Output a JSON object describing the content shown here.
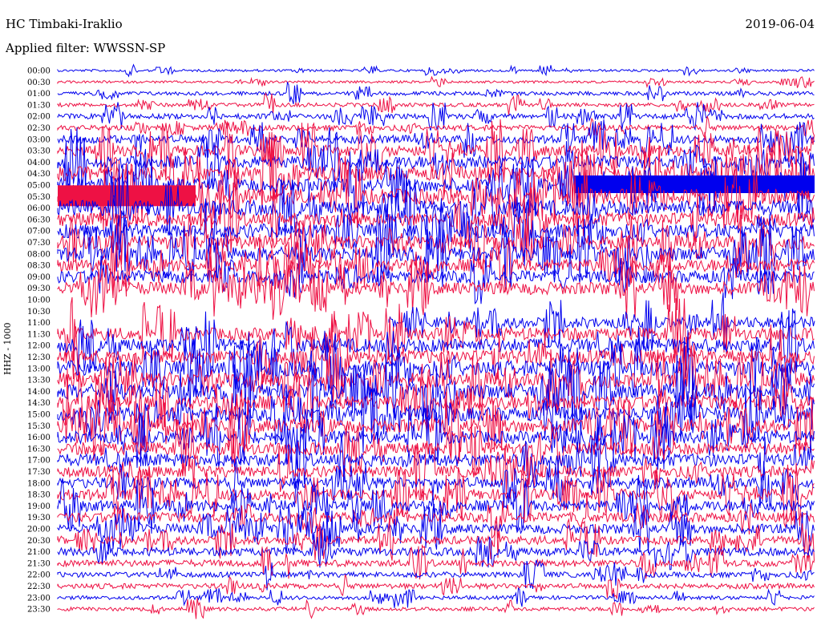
{
  "header": {
    "station": "HC Timbaki-Iraklio",
    "date": "2019-06-04",
    "filter_label": "Applied filter:",
    "filter_value": "WWSSN-SP"
  },
  "channel": "HHZ - 1000",
  "colors": {
    "trace_a": "#0000ee",
    "trace_b": "#ee1144",
    "background": "#ffffff"
  },
  "chart_data": {
    "type": "line",
    "title": "HC Timbaki-Iraklio",
    "ylabel": "HHZ - 1000",
    "x": [
      "00:00",
      "00:30",
      "01:00",
      "01:30",
      "02:00",
      "02:30",
      "03:00",
      "03:30",
      "04:00",
      "04:30",
      "05:00",
      "05:30",
      "06:00",
      "06:30",
      "07:00",
      "07:30",
      "08:00",
      "08:30",
      "09:00",
      "09:30",
      "10:00",
      "10:30",
      "11:00",
      "11:30",
      "12:00",
      "12:30",
      "13:00",
      "13:30",
      "14:00",
      "14:30",
      "15:00",
      "15:30",
      "16:00",
      "16:30",
      "17:00",
      "17:30",
      "18:00",
      "18:30",
      "19:00",
      "19:30",
      "20:00",
      "20:30",
      "21:00",
      "21:30",
      "22:00",
      "22:30",
      "23:00",
      "23:30"
    ],
    "row_labels": [
      "00:00",
      "00:30",
      "01:00",
      "01:30",
      "02:00",
      "02:30",
      "03:00",
      "03:30",
      "04:00",
      "04:30",
      "05:00",
      "05:30",
      "06:00",
      "06:30",
      "07:00",
      "07:30",
      "08:00",
      "08:30",
      "09:00",
      "09:30",
      "10:00",
      "10:30",
      "11:00",
      "11:30",
      "12:00",
      "12:30",
      "13:00",
      "13:30",
      "14:00",
      "14:30",
      "15:00",
      "15:30",
      "16:00",
      "16:30",
      "17:00",
      "17:30",
      "18:00",
      "18:30",
      "19:00",
      "19:30",
      "20:00",
      "20:30",
      "21:00",
      "21:30",
      "22:00",
      "22:30",
      "23:00",
      "23:30"
    ],
    "activity": [
      1,
      1,
      2,
      2,
      3,
      3,
      5,
      7,
      8,
      9,
      9,
      10,
      10,
      9,
      9,
      9,
      9,
      8,
      8,
      8,
      0,
      0,
      7,
      8,
      9,
      9,
      10,
      10,
      10,
      9,
      9,
      9,
      8,
      8,
      8,
      7,
      7,
      7,
      7,
      6,
      6,
      5,
      5,
      4,
      3,
      3,
      2,
      2
    ],
    "data_gap": {
      "from": "10:00",
      "to": "11:00"
    },
    "series": [
      {
        "values": [
          1,
          0,
          1,
          0,
          1,
          0,
          1,
          0,
          1,
          0,
          1,
          0,
          1,
          0,
          1,
          0,
          1,
          0,
          1,
          0,
          1,
          0,
          1,
          0,
          1,
          0,
          1,
          0,
          1,
          0,
          1,
          0,
          1,
          0,
          1,
          0,
          1,
          0,
          1,
          0,
          1,
          0,
          1,
          0,
          1,
          0,
          1,
          0
        ]
      }
    ]
  }
}
